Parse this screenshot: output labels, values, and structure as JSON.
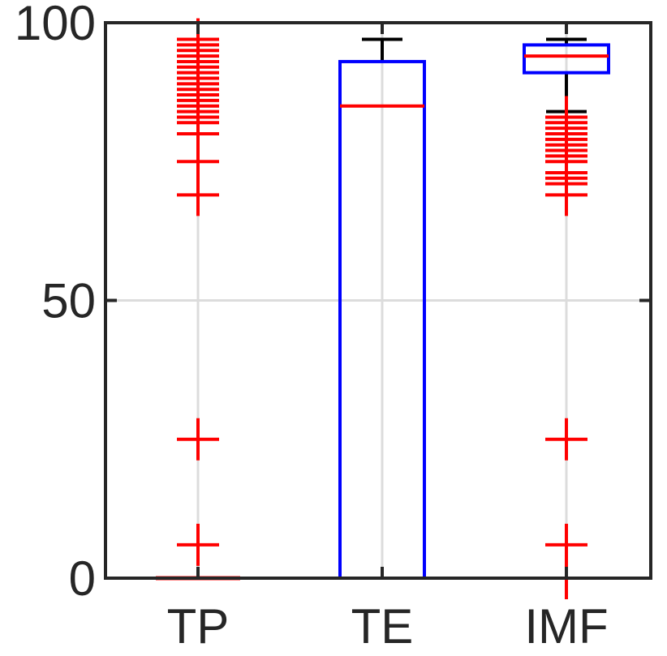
{
  "chart_data": {
    "type": "boxplot",
    "title": "",
    "xlabel": "",
    "ylabel": "",
    "ylim": [
      0,
      100
    ],
    "yticks": [
      0,
      50,
      100
    ],
    "grid": true,
    "categories": [
      "TP",
      "TE",
      "IMF"
    ],
    "colors": {
      "axis": "#262626",
      "grid": "#dcdcdc",
      "box": "#0000ff",
      "median": "#ff0000",
      "outlier": "#ff0000",
      "whisker": "#000000"
    },
    "boxes": [
      {
        "category": "TP",
        "q1": 0,
        "median": 0,
        "q3": 0,
        "whisker_low": 0,
        "whisker_high": 0,
        "outliers": [
          97,
          96,
          95,
          94,
          93,
          92,
          91,
          90,
          89,
          88,
          87,
          86,
          85,
          84,
          83,
          82,
          80,
          75,
          69,
          25,
          6
        ]
      },
      {
        "category": "TE",
        "q1": 0,
        "median": 85,
        "q3": 93,
        "whisker_low": 0,
        "whisker_high": 97,
        "outliers": []
      },
      {
        "category": "IMF",
        "q1": 91,
        "median": 94,
        "q3": 96,
        "whisker_low": 84,
        "whisker_high": 97,
        "outliers": [
          83,
          82,
          81,
          80,
          79,
          78,
          77,
          76,
          75,
          73,
          72,
          71,
          69,
          25,
          6,
          0
        ]
      }
    ]
  }
}
